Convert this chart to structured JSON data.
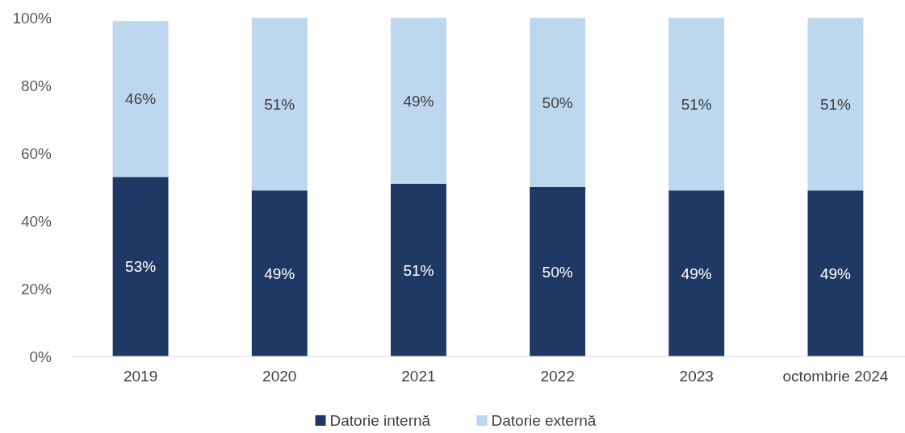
{
  "chart_data": {
    "type": "bar",
    "stacked": true,
    "categories": [
      "2019",
      "2020",
      "2021",
      "2022",
      "2023",
      "octombrie 2024"
    ],
    "series": [
      {
        "name": "Datorie internă",
        "color": "#1f3864",
        "values": [
          53,
          49,
          51,
          50,
          49,
          49
        ],
        "value_labels": [
          "53%",
          "49%",
          "51%",
          "50%",
          "49%",
          "49%"
        ]
      },
      {
        "name": "Datorie externă",
        "color": "#bdd7ee",
        "values": [
          46,
          51,
          49,
          50,
          51,
          51
        ],
        "value_labels": [
          "46%",
          "51%",
          "49%",
          "50%",
          "51%",
          "51%"
        ]
      }
    ],
    "ylim": [
      0,
      100
    ],
    "yticks": [
      {
        "value": 0,
        "label": "0%"
      },
      {
        "value": 20,
        "label": "20%"
      },
      {
        "value": 40,
        "label": "40%"
      },
      {
        "value": 60,
        "label": "60%"
      },
      {
        "value": 80,
        "label": "80%"
      },
      {
        "value": 100,
        "label": "100%"
      }
    ],
    "grid": false,
    "legend": "bottom"
  }
}
